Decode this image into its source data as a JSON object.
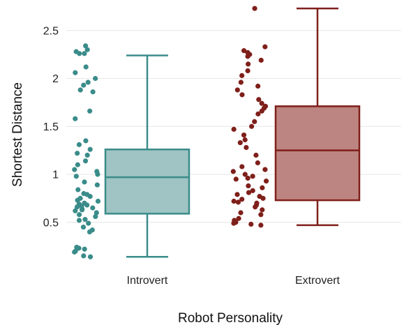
{
  "chart_data": {
    "type": "box",
    "xlabel": "Robot Personality",
    "ylabel": "Shortest Distance",
    "ylim": [
      0.1,
      2.75
    ],
    "yticks": [
      "0.5",
      "1",
      "1.5",
      "2",
      "2.5"
    ],
    "grid": true,
    "categories": [
      "Introvert",
      "Extrovert"
    ],
    "series": [
      {
        "category": "Introvert",
        "color": "#3a8c8a",
        "fill": "#9fc4c3",
        "box": {
          "whisker_low": 0.14,
          "q1": 0.59,
          "median": 0.97,
          "q3": 1.26,
          "whisker_high": 2.24
        },
        "points": [
          2.34,
          2.3,
          2.28,
          2.26,
          2.26,
          2.12,
          2.06,
          2.0,
          1.96,
          1.93,
          1.88,
          1.86,
          1.66,
          1.58,
          1.35,
          1.31,
          1.26,
          1.22,
          1.2,
          1.14,
          1.1,
          1.05,
          1.03,
          1.0,
          0.98,
          0.92,
          0.89,
          0.84,
          0.8,
          0.79,
          0.77,
          0.75,
          0.73,
          0.72,
          0.7,
          0.69,
          0.68,
          0.67,
          0.66,
          0.65,
          0.64,
          0.63,
          0.62,
          0.6,
          0.58,
          0.56,
          0.53,
          0.52,
          0.49,
          0.45,
          0.42,
          0.4,
          0.24,
          0.23,
          0.22,
          0.2,
          0.19,
          0.15,
          0.14
        ]
      },
      {
        "category": "Extrovert",
        "color": "#7f1f1a",
        "fill": "#bd8582",
        "box": {
          "whisker_low": 0.47,
          "q1": 0.73,
          "median": 1.25,
          "q3": 1.71,
          "whisker_high": 2.73
        },
        "points": [
          2.73,
          2.33,
          2.29,
          2.27,
          2.25,
          2.23,
          2.19,
          2.15,
          2.08,
          2.03,
          1.96,
          1.92,
          1.88,
          1.83,
          1.78,
          1.74,
          1.71,
          1.69,
          1.66,
          1.63,
          1.55,
          1.5,
          1.47,
          1.41,
          1.36,
          1.33,
          1.28,
          1.2,
          1.12,
          1.08,
          1.05,
          1.03,
          1.0,
          0.98,
          0.96,
          0.95,
          0.93,
          0.88,
          0.86,
          0.83,
          0.81,
          0.79,
          0.77,
          0.75,
          0.74,
          0.72,
          0.71,
          0.7,
          0.68,
          0.66,
          0.63,
          0.6,
          0.58,
          0.54,
          0.52,
          0.5,
          0.49,
          0.48,
          0.47
        ]
      }
    ]
  }
}
